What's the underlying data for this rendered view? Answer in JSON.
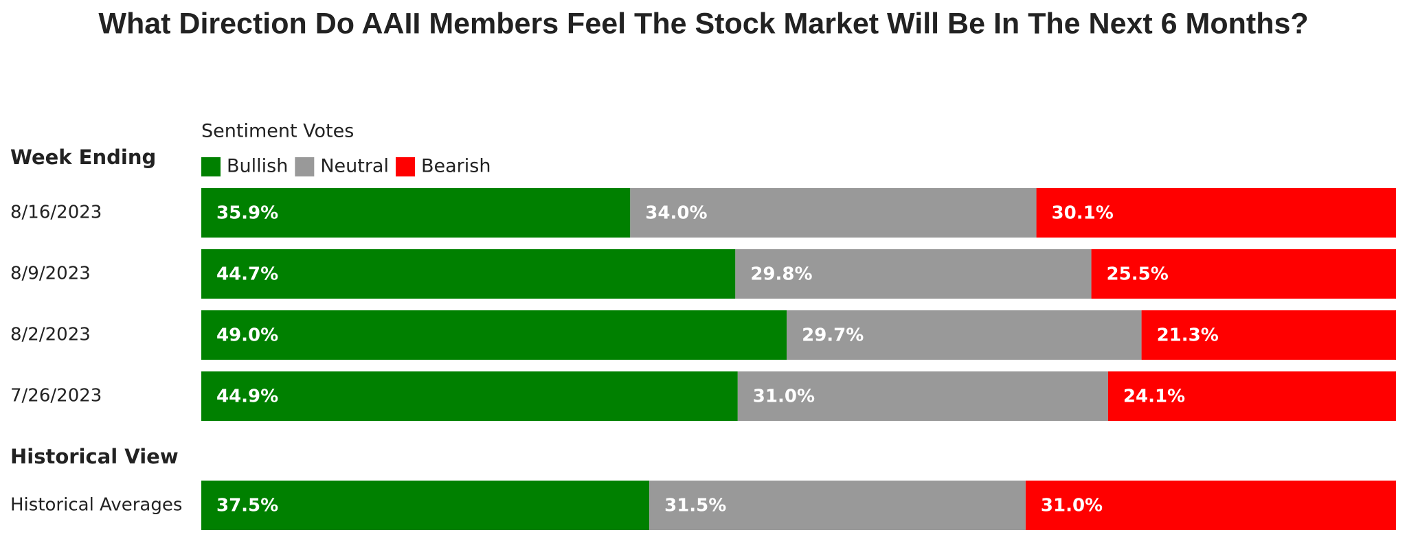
{
  "chart_data": [
    {
      "type": "bar",
      "stacked": true,
      "horizontal": true,
      "title": "What Direction Do AAII Members Feel The Stock Market Will Be In The Next 6 Months?",
      "legend_title": "Sentiment Votes",
      "ylabel": "Week Ending",
      "categories": [
        "8/16/2023",
        "8/9/2023",
        "8/2/2023",
        "7/26/2023"
      ],
      "series": [
        {
          "name": "Bullish",
          "color": "#008000",
          "values": [
            35.9,
            44.7,
            49.0,
            44.9
          ],
          "value_labels": [
            "35.9%",
            "44.7%",
            "49.0%",
            "44.9%"
          ]
        },
        {
          "name": "Neutral",
          "color": "#999999",
          "values": [
            34.0,
            29.8,
            29.7,
            31.0
          ],
          "value_labels": [
            "34.0%",
            "29.8%",
            "29.7%",
            "31.0%"
          ]
        },
        {
          "name": "Bearish",
          "color": "#ff0000",
          "values": [
            30.1,
            25.5,
            21.3,
            24.1
          ],
          "value_labels": [
            "30.1%",
            "25.5%",
            "21.3%",
            "24.1%"
          ]
        }
      ]
    },
    {
      "type": "bar",
      "stacked": true,
      "horizontal": true,
      "ylabel": "Historical View",
      "categories": [
        "Historical Averages"
      ],
      "series": [
        {
          "color": "#008000",
          "values": [
            37.5
          ],
          "value_labels": [
            "37.5%"
          ]
        },
        {
          "color": "#999999",
          "values": [
            31.5
          ],
          "value_labels": [
            "31.5%"
          ]
        },
        {
          "color": "#ff0000",
          "values": [
            31.0
          ],
          "value_labels": [
            "31.0%"
          ]
        }
      ]
    }
  ]
}
